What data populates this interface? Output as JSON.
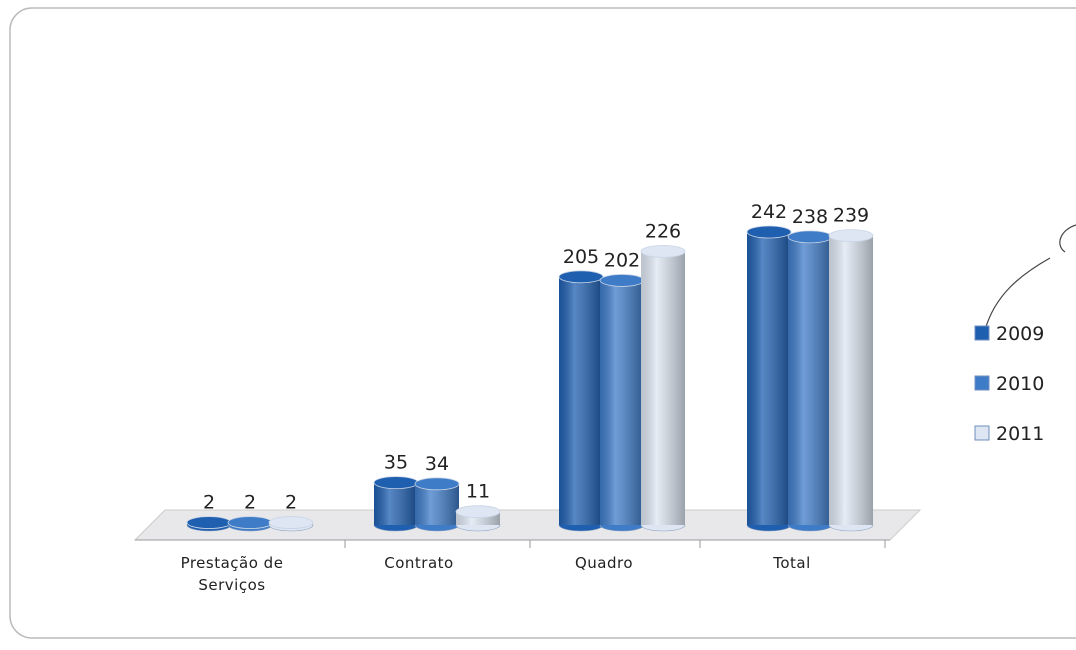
{
  "chart_data": {
    "type": "bar",
    "categories": [
      "Prestação de Serviços",
      "Contrato",
      "Quadro",
      "Total"
    ],
    "series": [
      {
        "name": "2009",
        "color": "#1f5fb0",
        "values": [
          2,
          35,
          205,
          242
        ]
      },
      {
        "name": "2010",
        "color": "#3f7cc8",
        "values": [
          2,
          34,
          202,
          238
        ]
      },
      {
        "name": "2011",
        "color": "#dde6f2",
        "values": [
          2,
          11,
          226,
          239
        ]
      }
    ],
    "legend": "right"
  }
}
